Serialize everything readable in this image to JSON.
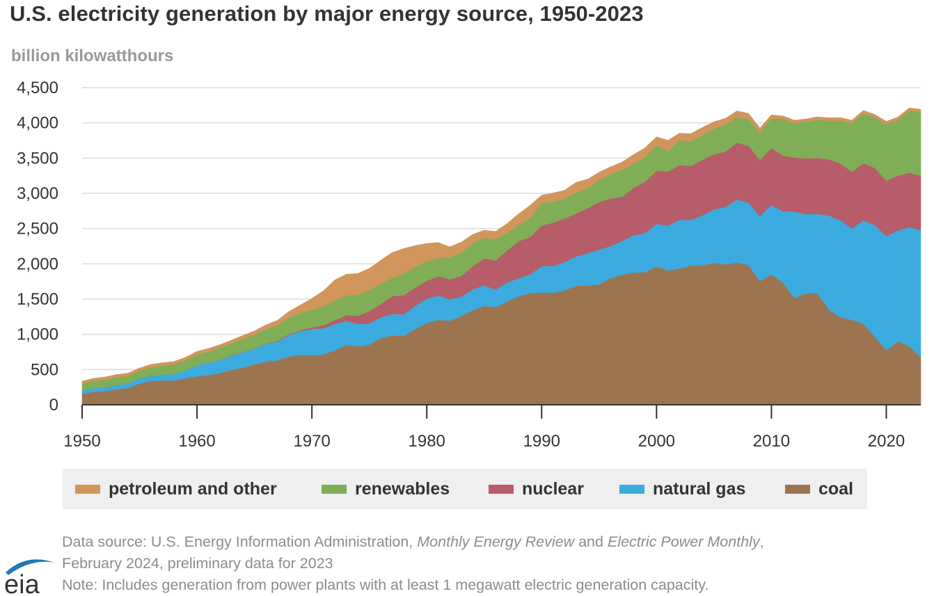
{
  "colors": {
    "petroleum": "#d2955b",
    "renewables": "#7fae56",
    "nuclear": "#b65d69",
    "natural_gas": "#3cabdf",
    "coal": "#9c7550",
    "grid": "#dcdcdc",
    "axis": "#333333"
  },
  "source": {
    "line1_prefix": "Data source: U.S. Energy Information Administration, ",
    "line1_em1": "Monthly Energy Review",
    "line1_mid": " and ",
    "line1_em2": "Electric Power Monthly",
    "line1_suffix": ",",
    "line2": "February 2024, preliminary data for 2023",
    "line3": "Note: Includes generation from power plants with at least 1 megawatt electric generation capacity."
  },
  "logo": {
    "text": "eia"
  },
  "chart_data": {
    "type": "area",
    "stacked": true,
    "title": "U.S. electricity generation by major energy source, 1950-2023",
    "ylabel": "billion kilowatthours",
    "xlabel": "",
    "ylim": [
      0,
      4500
    ],
    "xlim": [
      1950,
      2023
    ],
    "yticks": [
      0,
      500,
      1000,
      1500,
      2000,
      2500,
      3000,
      3500,
      4000,
      4500
    ],
    "ytick_labels": [
      "0",
      "500",
      "1,000",
      "1,500",
      "2,000",
      "2,500",
      "3,000",
      "3,500",
      "4,000",
      "4,500"
    ],
    "xticks": [
      1950,
      1960,
      1970,
      1980,
      1990,
      2000,
      2010,
      2020
    ],
    "xtick_labels": [
      "1950",
      "1960",
      "1970",
      "1980",
      "1990",
      "2000",
      "2010",
      "2020"
    ],
    "grid": true,
    "legend_position": "bottom",
    "x": [
      1950,
      1951,
      1952,
      1953,
      1954,
      1955,
      1956,
      1957,
      1958,
      1959,
      1960,
      1961,
      1962,
      1963,
      1964,
      1965,
      1966,
      1967,
      1968,
      1969,
      1970,
      1971,
      1972,
      1973,
      1974,
      1975,
      1976,
      1977,
      1978,
      1979,
      1980,
      1981,
      1982,
      1983,
      1984,
      1985,
      1986,
      1987,
      1988,
      1989,
      1990,
      1991,
      1992,
      1993,
      1994,
      1995,
      1996,
      1997,
      1998,
      1999,
      2000,
      2001,
      2002,
      2003,
      2004,
      2005,
      2006,
      2007,
      2008,
      2009,
      2010,
      2011,
      2012,
      2013,
      2014,
      2015,
      2016,
      2017,
      2018,
      2019,
      2020,
      2021,
      2022,
      2023
    ],
    "series": [
      {
        "name": "coal",
        "key": "coal",
        "values": [
          155,
          185,
          195,
          218,
          239,
          301,
          338,
          346,
          344,
          378,
          403,
          422,
          450,
          494,
          526,
          571,
          613,
          630,
          685,
          706,
          704,
          713,
          771,
          848,
          828,
          853,
          944,
          985,
          976,
          1075,
          1162,
          1203,
          1192,
          1259,
          1342,
          1402,
          1386,
          1464,
          1541,
          1584,
          1594,
          1590,
          1621,
          1690,
          1690,
          1709,
          1796,
          1845,
          1874,
          1881,
          1966,
          1904,
          1933,
          1974,
          1978,
          2013,
          1991,
          2016,
          1986,
          1756,
          1847,
          1733,
          1514,
          1581,
          1582,
          1352,
          1240,
          1206,
          1149,
          965,
          774,
          898,
          832,
          675
        ]
      },
      {
        "name": "natural gas",
        "key": "natural_gas",
        "values": [
          45,
          50,
          55,
          60,
          65,
          70,
          75,
          80,
          90,
          110,
          158,
          170,
          185,
          200,
          220,
          222,
          250,
          265,
          305,
          335,
          373,
          374,
          376,
          341,
          320,
          300,
          295,
          305,
          305,
          330,
          346,
          346,
          305,
          274,
          297,
          292,
          249,
          273,
          253,
          267,
          373,
          381,
          404,
          415,
          460,
          496,
          455,
          479,
          531,
          556,
          601,
          639,
          691,
          649,
          710,
          761,
          816,
          897,
          883,
          921,
          988,
          1014,
          1225,
          1125,
          1126,
          1333,
          1378,
          1296,
          1469,
          1586,
          1617,
          1576,
          1688,
          1802
        ]
      },
      {
        "name": "nuclear",
        "key": "nuclear",
        "values": [
          0,
          0,
          0,
          0,
          0,
          0,
          0,
          0,
          0,
          0,
          1,
          2,
          2,
          3,
          3,
          4,
          6,
          8,
          13,
          14,
          22,
          38,
          54,
          83,
          114,
          173,
          191,
          251,
          276,
          255,
          251,
          273,
          283,
          294,
          328,
          384,
          414,
          455,
          527,
          529,
          577,
          613,
          619,
          610,
          640,
          673,
          675,
          629,
          674,
          728,
          754,
          769,
          780,
          764,
          789,
          782,
          787,
          806,
          806,
          799,
          807,
          790,
          769,
          789,
          797,
          797,
          806,
          805,
          807,
          809,
          790,
          778,
          772,
          775
        ]
      },
      {
        "name": "renewables",
        "key": "renewables",
        "values": [
          100,
          105,
          105,
          110,
          110,
          115,
          120,
          130,
          140,
          140,
          150,
          160,
          170,
          175,
          185,
          200,
          205,
          225,
          230,
          250,
          250,
          270,
          280,
          280,
          300,
          300,
          290,
          260,
          300,
          300,
          280,
          260,
          310,
          330,
          330,
          290,
          300,
          250,
          230,
          270,
          320,
          300,
          280,
          300,
          280,
          310,
          350,
          380,
          340,
          350,
          360,
          290,
          350,
          350,
          350,
          360,
          380,
          360,
          380,
          390,
          420,
          520,
          490,
          520,
          540,
          550,
          610,
          690,
          710,
          720,
          800,
          790,
          880,
          900
        ]
      },
      {
        "name": "petroleum and other",
        "key": "petroleum",
        "values": [
          35,
          35,
          40,
          40,
          35,
          35,
          40,
          40,
          40,
          45,
          45,
          45,
          45,
          45,
          50,
          50,
          60,
          70,
          90,
          110,
          160,
          220,
          290,
          300,
          300,
          310,
          330,
          360,
          360,
          300,
          250,
          220,
          150,
          150,
          120,
          110,
          110,
          130,
          160,
          180,
          110,
          120,
          120,
          140,
          130,
          110,
          100,
          110,
          130,
          130,
          120,
          150,
          100,
          110,
          110,
          100,
          90,
          90,
          80,
          60,
          50,
          40,
          40,
          40,
          40,
          40,
          40,
          40,
          40,
          40,
          40,
          40,
          40,
          40
        ]
      }
    ],
    "legend": [
      {
        "label": "petroleum and other",
        "key": "petroleum"
      },
      {
        "label": "renewables",
        "key": "renewables"
      },
      {
        "label": "nuclear",
        "key": "nuclear"
      },
      {
        "label": "natural gas",
        "key": "natural_gas"
      },
      {
        "label": "coal",
        "key": "coal"
      }
    ]
  }
}
